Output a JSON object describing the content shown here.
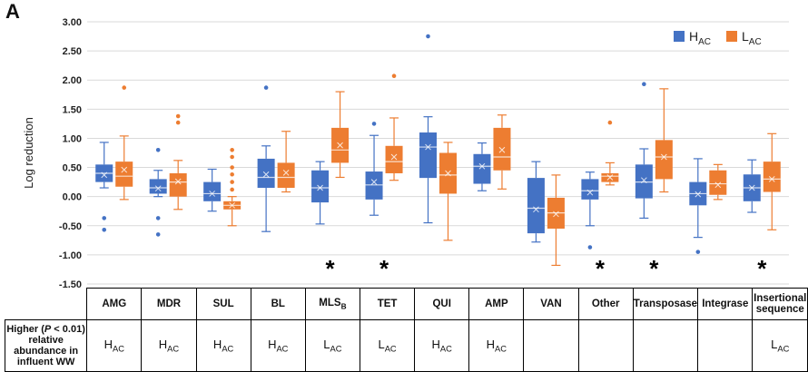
{
  "panel_label": "A",
  "chart_data": {
    "type": "box",
    "ylabel": "Log reduction",
    "ylim": [
      -1.5,
      3.0
    ],
    "yticks": [
      "3.00",
      "2.50",
      "2.00",
      "1.50",
      "1.00",
      "0.50",
      "0.00",
      "-0.50",
      "-1.00",
      "-1.50"
    ],
    "grid": true,
    "legend_position": "top-right",
    "series": [
      {
        "name": "H",
        "sub": "AC",
        "color": "#4472C4"
      },
      {
        "name": "L",
        "sub": "AC",
        "color": "#ED7D31"
      }
    ],
    "categories": [
      {
        "label": "AMG",
        "significant": false,
        "higher": "H",
        "H": {
          "min": 0.15,
          "q1": 0.25,
          "median": 0.4,
          "q3": 0.55,
          "max": 0.93,
          "mean": 0.37,
          "outliers": [
            -0.37,
            -0.57
          ]
        },
        "L": {
          "min": -0.05,
          "q1": 0.17,
          "median": 0.35,
          "q3": 0.6,
          "max": 1.04,
          "mean": 0.46,
          "outliers": [
            1.87
          ]
        }
      },
      {
        "label": "MDR",
        "significant": false,
        "higher": "H",
        "H": {
          "min": 0.0,
          "q1": 0.05,
          "median": 0.15,
          "q3": 0.3,
          "max": 0.45,
          "mean": 0.14,
          "outliers": [
            0.8,
            -0.37,
            -0.65
          ]
        },
        "L": {
          "min": -0.22,
          "q1": 0.0,
          "median": 0.25,
          "q3": 0.4,
          "max": 0.62,
          "mean": 0.26,
          "outliers": [
            1.38,
            1.27
          ]
        }
      },
      {
        "label": "SUL",
        "significant": false,
        "higher": "H",
        "H": {
          "min": -0.25,
          "q1": -0.08,
          "median": 0.05,
          "q3": 0.25,
          "max": 0.47,
          "mean": 0.05,
          "outliers": []
        },
        "L": {
          "min": -0.5,
          "q1": -0.22,
          "median": -0.15,
          "q3": -0.08,
          "max": 0.0,
          "mean": -0.15,
          "outliers": [
            0.8,
            0.68,
            0.5,
            0.38,
            0.25,
            0.12
          ]
        },
        "note": "extra outliers"
      },
      {
        "label": "BL",
        "significant": false,
        "higher": "H",
        "H": {
          "min": -0.6,
          "q1": 0.15,
          "median": 0.33,
          "q3": 0.65,
          "max": 0.87,
          "mean": 0.38,
          "outliers": [
            1.87
          ]
        },
        "L": {
          "min": 0.08,
          "q1": 0.15,
          "median": 0.33,
          "q3": 0.58,
          "max": 1.12,
          "mean": 0.41,
          "outliers": []
        }
      },
      {
        "label": "MLS",
        "sub": "B",
        "significant": true,
        "higher": "L",
        "H": {
          "min": -0.47,
          "q1": -0.1,
          "median": 0.15,
          "q3": 0.45,
          "max": 0.6,
          "mean": 0.15,
          "outliers": []
        },
        "L": {
          "min": 0.33,
          "q1": 0.58,
          "median": 0.8,
          "q3": 1.18,
          "max": 1.8,
          "mean": 0.88,
          "outliers": []
        }
      },
      {
        "label": "TET",
        "significant": true,
        "higher": "L",
        "H": {
          "min": -0.32,
          "q1": -0.05,
          "median": 0.2,
          "q3": 0.43,
          "max": 1.05,
          "mean": 0.25,
          "outliers": [
            1.25
          ]
        },
        "L": {
          "min": 0.28,
          "q1": 0.4,
          "median": 0.6,
          "q3": 0.87,
          "max": 1.35,
          "mean": 0.68,
          "outliers": [
            2.07
          ]
        }
      },
      {
        "label": "QUI",
        "significant": false,
        "higher": "H",
        "H": {
          "min": -0.45,
          "q1": 0.32,
          "median": 0.85,
          "q3": 1.1,
          "max": 1.37,
          "mean": 0.85,
          "outliers": [
            2.75
          ]
        },
        "L": {
          "min": -0.75,
          "q1": 0.05,
          "median": 0.37,
          "q3": 0.75,
          "max": 0.93,
          "mean": 0.4,
          "outliers": []
        }
      },
      {
        "label": "AMP",
        "significant": false,
        "higher": "H",
        "H": {
          "min": 0.1,
          "q1": 0.22,
          "median": 0.52,
          "q3": 0.73,
          "max": 0.92,
          "mean": 0.52,
          "outliers": []
        },
        "L": {
          "min": 0.13,
          "q1": 0.45,
          "median": 0.68,
          "q3": 1.18,
          "max": 1.4,
          "mean": 0.8,
          "outliers": []
        }
      },
      {
        "label": "VAN",
        "significant": false,
        "higher": "",
        "H": {
          "min": -0.78,
          "q1": -0.63,
          "median": -0.2,
          "q3": 0.32,
          "max": 0.6,
          "mean": -0.22,
          "outliers": []
        },
        "L": {
          "min": -1.18,
          "q1": -0.55,
          "median": -0.28,
          "q3": -0.02,
          "max": 0.37,
          "mean": -0.3,
          "outliers": []
        }
      },
      {
        "label": "Other",
        "significant": true,
        "higher": "",
        "H": {
          "min": -0.5,
          "q1": -0.05,
          "median": 0.1,
          "q3": 0.3,
          "max": 0.42,
          "mean": 0.07,
          "outliers": [
            -0.87
          ]
        },
        "L": {
          "min": 0.2,
          "q1": 0.25,
          "median": 0.35,
          "q3": 0.4,
          "max": 0.58,
          "mean": 0.33,
          "outliers": [
            1.27
          ]
        }
      },
      {
        "label": "Transposase",
        "significant": true,
        "higher": "",
        "H": {
          "min": -0.37,
          "q1": -0.03,
          "median": 0.25,
          "q3": 0.55,
          "max": 0.82,
          "mean": 0.28,
          "outliers": [
            1.93
          ]
        },
        "L": {
          "min": 0.08,
          "q1": 0.3,
          "median": 0.68,
          "q3": 0.97,
          "max": 1.85,
          "mean": 0.68,
          "outliers": []
        }
      },
      {
        "label": "Integrase",
        "significant": false,
        "higher": "",
        "H": {
          "min": -0.7,
          "q1": -0.15,
          "median": 0.05,
          "q3": 0.25,
          "max": 0.65,
          "mean": 0.04,
          "outliers": [
            -0.95
          ]
        },
        "L": {
          "min": -0.05,
          "q1": 0.03,
          "median": 0.22,
          "q3": 0.45,
          "max": 0.55,
          "mean": 0.2,
          "outliers": []
        }
      },
      {
        "label": "Insertional sequence",
        "significant": true,
        "higher": "L",
        "H": {
          "min": -0.27,
          "q1": -0.08,
          "median": 0.15,
          "q3": 0.38,
          "max": 0.63,
          "mean": 0.15,
          "outliers": []
        },
        "L": {
          "min": -0.57,
          "q1": 0.08,
          "median": 0.3,
          "q3": 0.6,
          "max": 1.08,
          "mean": 0.3,
          "outliers": []
        }
      }
    ],
    "significance_marker": "*"
  },
  "table": {
    "row_label_pre": "Higher (",
    "row_label_p": "P",
    "row_label_post": " < 0.01) relative abundance in influent WW",
    "value_sub": "AC"
  }
}
